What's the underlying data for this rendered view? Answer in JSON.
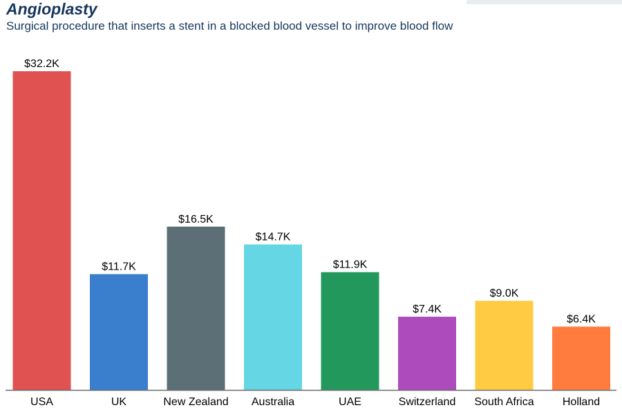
{
  "chart_data": {
    "type": "bar",
    "title": "Angioplasty",
    "subtitle": "Surgical procedure that inserts a stent in a blocked blood vessel to improve blood flow",
    "xlabel": "",
    "ylabel": "",
    "categories": [
      "USA",
      "UK",
      "New Zealand",
      "Australia",
      "UAE",
      "Switzerland",
      "South Africa",
      "Holland"
    ],
    "values": [
      32.2,
      11.7,
      16.5,
      14.7,
      11.9,
      7.4,
      9.0,
      6.4
    ],
    "value_labels": [
      "$32.2K",
      "$11.7K",
      "$16.5K",
      "$14.7K",
      "$11.9K",
      "$7.4K",
      "$9.0K",
      "$6.4K"
    ],
    "colors": [
      "#e05252",
      "#3a7fcd",
      "#5c6f77",
      "#65d6e4",
      "#22985c",
      "#ad4bbd",
      "#fecb42",
      "#ff7c3e"
    ],
    "ylim": [
      0,
      32.2
    ],
    "grid": false,
    "legend": "none"
  }
}
